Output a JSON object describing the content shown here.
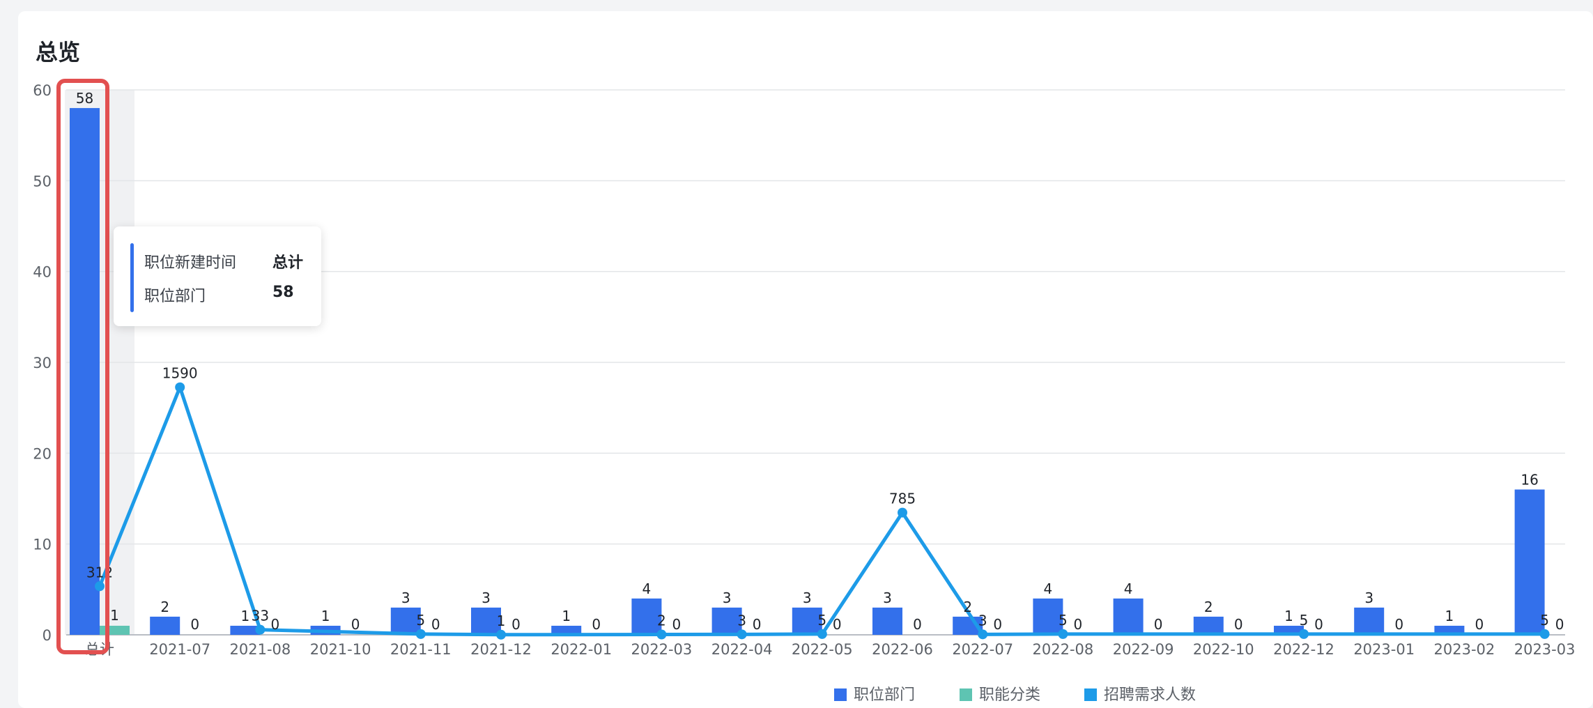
{
  "card": {
    "title": "总览"
  },
  "tooltip": {
    "rows": [
      {
        "label": "职位新建时间",
        "value": "总计"
      },
      {
        "label": "职位部门",
        "value": "58"
      }
    ]
  },
  "colors": {
    "series_a": "#3370eb",
    "series_b": "#5ec4b2",
    "series_c": "#1d9be8",
    "highlight": "#e25050"
  },
  "chart_data": {
    "type": "bar",
    "categories": [
      "总计",
      "2021-07",
      "2021-08",
      "2021-10",
      "2021-11",
      "2021-12",
      "2022-01",
      "2022-03",
      "2022-04",
      "2022-05",
      "2022-06",
      "2022-07",
      "2022-08",
      "2022-09",
      "2022-10",
      "2022-12",
      "2023-01",
      "2023-02",
      "2023-03"
    ],
    "series": [
      {
        "name": "职位部门",
        "type": "bar",
        "values": [
          58,
          2,
          1,
          1,
          3,
          3,
          1,
          4,
          3,
          3,
          3,
          2,
          4,
          4,
          2,
          1,
          3,
          1,
          16
        ]
      },
      {
        "name": "职能分类",
        "type": "bar",
        "values": [
          1,
          0,
          0,
          0,
          0,
          0,
          0,
          0,
          0,
          0,
          0,
          0,
          0,
          0,
          0,
          0,
          0,
          0,
          0
        ]
      },
      {
        "name": "招聘需求人数",
        "type": "line",
        "values": [
          312,
          1590,
          33,
          null,
          5,
          1,
          null,
          2,
          3,
          5,
          785,
          3,
          5,
          null,
          null,
          5,
          null,
          null,
          5
        ],
        "labels": [
          "312",
          "1590",
          "33",
          "",
          "5",
          "1",
          "",
          "2",
          "3",
          "5",
          "785",
          "3",
          "5",
          "",
          "",
          "5",
          "",
          "",
          "5"
        ]
      }
    ],
    "secondary_values": [
      "1",
      "0",
      "0",
      "0",
      "0",
      "0",
      "0",
      "0",
      "0",
      "0",
      "0",
      "0",
      "0",
      "0",
      "0",
      "0",
      "0",
      "0",
      "0"
    ],
    "yticks": [
      "0",
      "10",
      "20",
      "30",
      "40",
      "50",
      "60"
    ],
    "ylim": [
      0,
      60
    ],
    "y2lim": [
      0,
      3500
    ],
    "legend_position": "bottom",
    "grid": true
  }
}
